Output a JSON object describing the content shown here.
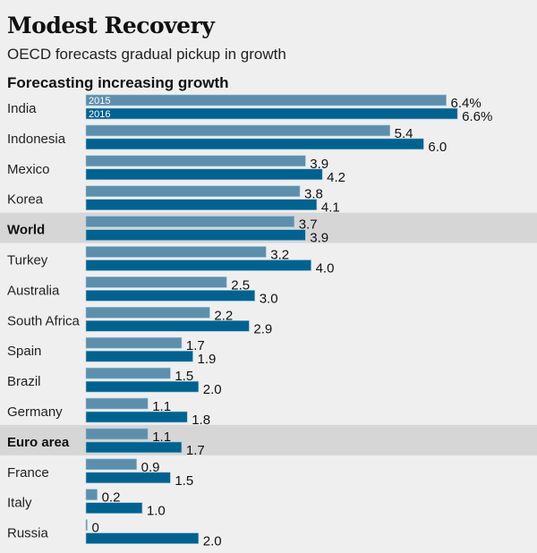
{
  "header": {
    "title": "Modest Recovery",
    "subtitle": "OECD forecasts gradual pickup in growth",
    "section": "Forecasting increasing growth"
  },
  "colors": {
    "s2015": "#5d8fad",
    "s2016": "#02628f",
    "highlight": "#d6d6d6",
    "background": "#efefef"
  },
  "chart_data": {
    "type": "bar",
    "orientation": "horizontal",
    "title": "Modest Recovery",
    "subtitle": "OECD forecasts gradual pickup in growth",
    "section_label": "Forecasting increasing growth",
    "xlabel": "",
    "ylabel": "",
    "unit": "%",
    "xlim": [
      0,
      6.6
    ],
    "grid": false,
    "legend": {
      "placement": "inside-first-bars",
      "entries": [
        "2015",
        "2016"
      ]
    },
    "categories": [
      "India",
      "Indonesia",
      "Mexico",
      "Korea",
      "World",
      "Turkey",
      "Australia",
      "South Africa",
      "Spain",
      "Brazil",
      "Germany",
      "Euro area",
      "France",
      "Italy",
      "Russia"
    ],
    "highlighted": [
      "World",
      "Euro area"
    ],
    "series": [
      {
        "name": "2015",
        "values": [
          6.4,
          5.4,
          3.9,
          3.8,
          3.7,
          3.2,
          2.5,
          2.2,
          1.7,
          1.5,
          1.1,
          1.1,
          0.9,
          0.2,
          0
        ]
      },
      {
        "name": "2016",
        "values": [
          6.6,
          6.0,
          4.2,
          4.1,
          3.9,
          4.0,
          3.0,
          2.9,
          1.9,
          2.0,
          1.8,
          1.7,
          1.5,
          1.0,
          2.0
        ]
      }
    ],
    "value_labels": [
      [
        "6.4%",
        "5.4",
        "3.9",
        "3.8",
        "3.7",
        "3.2",
        "2.5",
        "2.2",
        "1.7",
        "1.5",
        "1.1",
        "1.1",
        "0.9",
        "0.2",
        "0"
      ],
      [
        "6.6%",
        "6.0",
        "4.2",
        "4.1",
        "3.9",
        "4.0",
        "3.0",
        "2.9",
        "1.9",
        "2.0",
        "1.8",
        "1.7",
        "1.5",
        "1.0",
        "2.0"
      ]
    ]
  }
}
